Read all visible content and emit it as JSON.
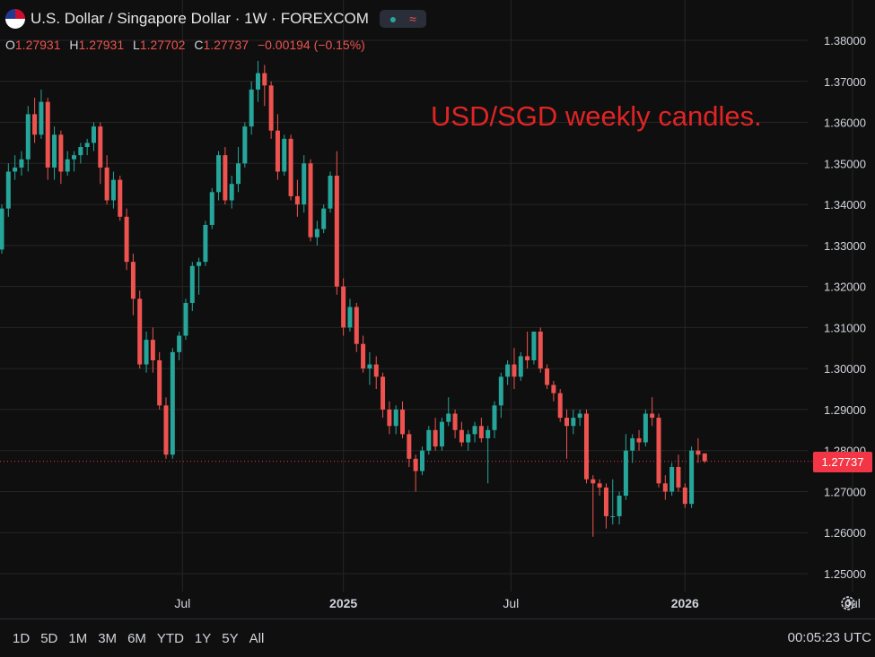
{
  "header": {
    "title": "U.S. Dollar / Singapore Dollar · 1W · FOREXCOM",
    "flag_icon": "usd-sgd-flag-icon",
    "indicator_icons": [
      "dot-icon",
      "wave-icon"
    ]
  },
  "ohlc": {
    "o_label": "O",
    "o": "1.27931",
    "h_label": "H",
    "h": "1.27931",
    "l_label": "L",
    "l": "1.27702",
    "c_label": "C",
    "c": "1.27737",
    "change": "−0.00194 (−0.15%)"
  },
  "annotation": "USD/SGD weekly candles.",
  "last_price_label": "1.27737",
  "time_ranges": [
    "1D",
    "5D",
    "1M",
    "3M",
    "6M",
    "YTD",
    "1Y",
    "5Y",
    "All"
  ],
  "clock": "00:05:23 UTC",
  "colors": {
    "up": "#26a69a",
    "down": "#ef5350",
    "background": "#0f0f0f",
    "grid": "#262626",
    "annotation": "#e02424"
  },
  "chart_data": {
    "type": "candlestick",
    "ylim": [
      1.2445,
      1.3839
    ],
    "yticks": [
      "1.38000",
      "1.37000",
      "1.36000",
      "1.35000",
      "1.34000",
      "1.33000",
      "1.32000",
      "1.31000",
      "1.30000",
      "1.29000",
      "1.28000",
      "1.27000",
      "1.26000",
      "1.25000"
    ],
    "xticks": [
      {
        "label": "Jul",
        "bold": false,
        "index": 27.5
      },
      {
        "label": "2025",
        "bold": true,
        "index": 52
      },
      {
        "label": "Jul",
        "bold": false,
        "index": 77.5
      },
      {
        "label": "2026",
        "bold": true,
        "index": 104
      },
      {
        "label": "Jul",
        "bold": false,
        "index": 129.5
      }
    ],
    "last_price": 1.27737,
    "candles": [
      [
        1.329,
        1.34,
        1.328,
        1.339
      ],
      [
        1.339,
        1.35,
        1.337,
        1.348
      ],
      [
        1.348,
        1.352,
        1.346,
        1.349
      ],
      [
        1.349,
        1.353,
        1.347,
        1.351
      ],
      [
        1.351,
        1.364,
        1.348,
        1.362
      ],
      [
        1.362,
        1.366,
        1.355,
        1.357
      ],
      [
        1.357,
        1.368,
        1.356,
        1.365
      ],
      [
        1.365,
        1.366,
        1.346,
        1.349
      ],
      [
        1.349,
        1.359,
        1.346,
        1.357
      ],
      [
        1.357,
        1.358,
        1.345,
        1.348
      ],
      [
        1.348,
        1.353,
        1.347,
        1.351
      ],
      [
        1.351,
        1.353,
        1.348,
        1.352
      ],
      [
        1.352,
        1.355,
        1.35,
        1.354
      ],
      [
        1.354,
        1.356,
        1.352,
        1.355
      ],
      [
        1.355,
        1.36,
        1.353,
        1.359
      ],
      [
        1.359,
        1.36,
        1.345,
        1.349
      ],
      [
        1.349,
        1.352,
        1.34,
        1.341
      ],
      [
        1.341,
        1.348,
        1.339,
        1.346
      ],
      [
        1.346,
        1.347,
        1.336,
        1.337
      ],
      [
        1.337,
        1.339,
        1.324,
        1.326
      ],
      [
        1.326,
        1.328,
        1.313,
        1.317
      ],
      [
        1.317,
        1.319,
        1.3,
        1.301
      ],
      [
        1.301,
        1.309,
        1.299,
        1.307
      ],
      [
        1.307,
        1.31,
        1.299,
        1.302
      ],
      [
        1.302,
        1.304,
        1.29,
        1.291
      ],
      [
        1.291,
        1.293,
        1.278,
        1.279
      ],
      [
        1.279,
        1.305,
        1.278,
        1.304
      ],
      [
        1.304,
        1.309,
        1.302,
        1.308
      ],
      [
        1.308,
        1.317,
        1.307,
        1.316
      ],
      [
        1.316,
        1.326,
        1.314,
        1.325
      ],
      [
        1.325,
        1.327,
        1.318,
        1.326
      ],
      [
        1.326,
        1.336,
        1.325,
        1.335
      ],
      [
        1.335,
        1.344,
        1.334,
        1.343
      ],
      [
        1.343,
        1.353,
        1.341,
        1.352
      ],
      [
        1.352,
        1.354,
        1.34,
        1.341
      ],
      [
        1.341,
        1.347,
        1.339,
        1.345
      ],
      [
        1.345,
        1.354,
        1.343,
        1.35
      ],
      [
        1.35,
        1.36,
        1.349,
        1.359
      ],
      [
        1.359,
        1.37,
        1.357,
        1.368
      ],
      [
        1.368,
        1.375,
        1.365,
        1.372
      ],
      [
        1.372,
        1.374,
        1.364,
        1.369
      ],
      [
        1.369,
        1.37,
        1.356,
        1.358
      ],
      [
        1.358,
        1.362,
        1.346,
        1.348
      ],
      [
        1.348,
        1.357,
        1.347,
        1.356
      ],
      [
        1.356,
        1.357,
        1.341,
        1.342
      ],
      [
        1.342,
        1.346,
        1.337,
        1.34
      ],
      [
        1.34,
        1.352,
        1.338,
        1.35
      ],
      [
        1.35,
        1.351,
        1.331,
        1.332
      ],
      [
        1.332,
        1.336,
        1.33,
        1.334
      ],
      [
        1.334,
        1.34,
        1.333,
        1.339
      ],
      [
        1.339,
        1.348,
        1.338,
        1.347
      ],
      [
        1.347,
        1.353,
        1.318,
        1.32
      ],
      [
        1.32,
        1.322,
        1.308,
        1.31
      ],
      [
        1.31,
        1.317,
        1.309,
        1.315
      ],
      [
        1.315,
        1.316,
        1.304,
        1.306
      ],
      [
        1.306,
        1.308,
        1.299,
        1.3
      ],
      [
        1.3,
        1.304,
        1.296,
        1.301
      ],
      [
        1.301,
        1.303,
        1.295,
        1.298
      ],
      [
        1.298,
        1.299,
        1.288,
        1.29
      ],
      [
        1.29,
        1.292,
        1.284,
        1.286
      ],
      [
        1.286,
        1.291,
        1.284,
        1.29
      ],
      [
        1.29,
        1.292,
        1.283,
        1.284
      ],
      [
        1.284,
        1.285,
        1.276,
        1.278
      ],
      [
        1.278,
        1.279,
        1.27,
        1.275
      ],
      [
        1.275,
        1.281,
        1.274,
        1.28
      ],
      [
        1.28,
        1.286,
        1.279,
        1.285
      ],
      [
        1.285,
        1.288,
        1.28,
        1.281
      ],
      [
        1.281,
        1.288,
        1.28,
        1.287
      ],
      [
        1.287,
        1.293,
        1.286,
        1.289
      ],
      [
        1.289,
        1.29,
        1.283,
        1.285
      ],
      [
        1.285,
        1.287,
        1.281,
        1.282
      ],
      [
        1.282,
        1.285,
        1.28,
        1.284
      ],
      [
        1.284,
        1.287,
        1.282,
        1.286
      ],
      [
        1.286,
        1.288,
        1.282,
        1.283
      ],
      [
        1.283,
        1.286,
        1.272,
        1.285
      ],
      [
        1.285,
        1.292,
        1.283,
        1.291
      ],
      [
        1.291,
        1.299,
        1.288,
        1.298
      ],
      [
        1.298,
        1.302,
        1.296,
        1.301
      ],
      [
        1.301,
        1.305,
        1.295,
        1.298
      ],
      [
        1.298,
        1.304,
        1.297,
        1.303
      ],
      [
        1.303,
        1.309,
        1.3,
        1.302
      ],
      [
        1.302,
        1.309,
        1.301,
        1.309
      ],
      [
        1.309,
        1.31,
        1.299,
        1.3
      ],
      [
        1.3,
        1.301,
        1.295,
        1.296
      ],
      [
        1.296,
        1.297,
        1.292,
        1.294
      ],
      [
        1.294,
        1.295,
        1.287,
        1.288
      ],
      [
        1.288,
        1.29,
        1.278,
        1.286
      ],
      [
        1.286,
        1.29,
        1.284,
        1.288
      ],
      [
        1.288,
        1.29,
        1.286,
        1.289
      ],
      [
        1.289,
        1.29,
        1.272,
        1.273
      ],
      [
        1.273,
        1.274,
        1.259,
        1.272
      ],
      [
        1.272,
        1.273,
        1.269,
        1.271
      ],
      [
        1.271,
        1.272,
        1.261,
        1.264
      ],
      [
        1.264,
        1.273,
        1.262,
        1.264
      ],
      [
        1.264,
        1.27,
        1.262,
        1.269
      ],
      [
        1.269,
        1.284,
        1.268,
        1.28
      ],
      [
        1.28,
        1.284,
        1.277,
        1.283
      ],
      [
        1.283,
        1.285,
        1.28,
        1.282
      ],
      [
        1.282,
        1.29,
        1.281,
        1.289
      ],
      [
        1.289,
        1.293,
        1.286,
        1.288
      ],
      [
        1.288,
        1.289,
        1.271,
        1.272
      ],
      [
        1.272,
        1.274,
        1.268,
        1.27
      ],
      [
        1.27,
        1.277,
        1.269,
        1.276
      ],
      [
        1.276,
        1.279,
        1.27,
        1.271
      ],
      [
        1.271,
        1.272,
        1.266,
        1.267
      ],
      [
        1.267,
        1.281,
        1.266,
        1.28
      ],
      [
        1.28,
        1.283,
        1.277,
        1.279
      ],
      [
        1.2793,
        1.2793,
        1.277,
        1.2774
      ]
    ]
  }
}
